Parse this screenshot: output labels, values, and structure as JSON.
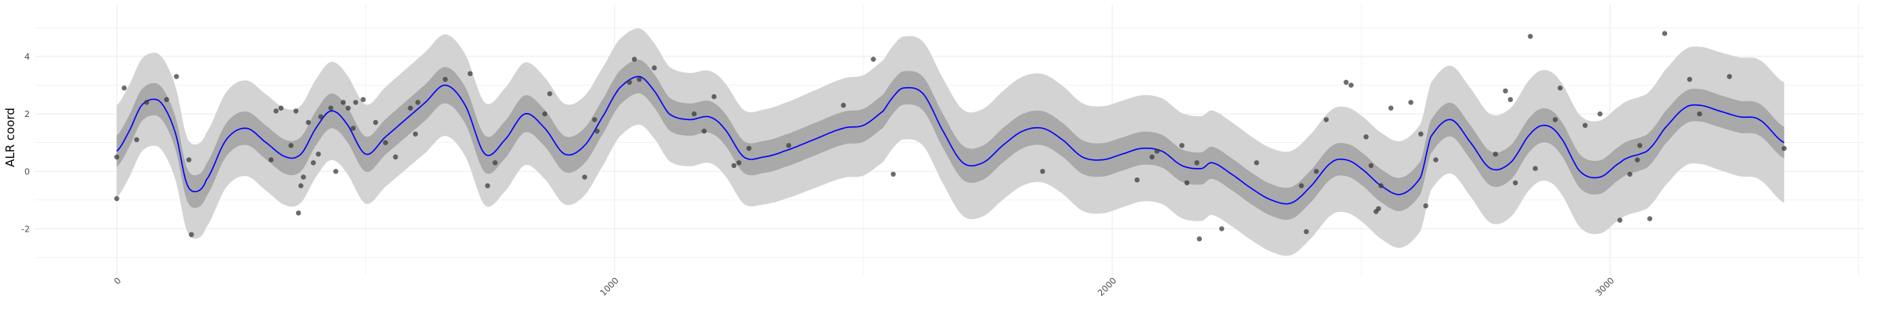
{
  "chart_data": {
    "type": "line",
    "title": "",
    "xlabel": "",
    "ylabel": "ALR coord",
    "xlim": [
      -165,
      3510
    ],
    "ylim": [
      -3.6,
      5.8
    ],
    "xticks": [
      0,
      1000,
      2000,
      3000
    ],
    "yticks": [
      -2,
      0,
      2,
      4
    ],
    "grid": true,
    "legend": "none",
    "colors": {
      "line": "#0000ff",
      "inner_band": "#a9a9a9",
      "outer_band": "#d3d3d3",
      "points": "#3b3b3b",
      "grid": "#ebebeb"
    },
    "series": [
      {
        "kind": "mean",
        "x": [
          0,
          25,
          50,
          80,
          100,
          120,
          140,
          160,
          180,
          220,
          260,
          300,
          340,
          370,
          400,
          430,
          460,
          500,
          540,
          580,
          620,
          660,
          700,
          740,
          780,
          820,
          860,
          900,
          940,
          980,
          1010,
          1050,
          1080,
          1110,
          1150,
          1190,
          1220,
          1260,
          1300,
          1340,
          1400,
          1460,
          1500,
          1540,
          1560,
          1580,
          1620,
          1660,
          1700,
          1740,
          1780,
          1820,
          1860,
          1900,
          1940,
          1980,
          2020,
          2060,
          2100,
          2140,
          2180,
          2200,
          2240,
          2280,
          2320,
          2360,
          2400,
          2440,
          2470,
          2500,
          2540,
          2580,
          2620,
          2640,
          2680,
          2720,
          2760,
          2800,
          2840,
          2870,
          2900,
          2940,
          2980,
          3020,
          3040,
          3060,
          3080,
          3110,
          3150,
          3180,
          3220,
          3260,
          3300,
          3350
        ],
        "y": [
          0.7,
          1.4,
          2.3,
          2.5,
          2.1,
          1.2,
          -0.4,
          -0.7,
          -0.3,
          1.1,
          1.5,
          1.0,
          0.5,
          0.6,
          1.5,
          2.1,
          1.7,
          0.6,
          1.2,
          1.8,
          2.4,
          3.0,
          2.3,
          0.6,
          1.1,
          2.0,
          1.5,
          0.6,
          0.9,
          2.0,
          2.9,
          3.3,
          2.8,
          2.0,
          1.8,
          1.9,
          1.5,
          0.5,
          0.5,
          0.7,
          1.1,
          1.5,
          1.6,
          2.1,
          2.6,
          2.9,
          2.7,
          1.4,
          0.3,
          0.3,
          0.9,
          1.4,
          1.5,
          1.1,
          0.5,
          0.4,
          0.6,
          0.8,
          0.7,
          0.2,
          0.1,
          0.3,
          -0.1,
          -0.6,
          -1.0,
          -1.1,
          -0.5,
          0.3,
          0.4,
          0.1,
          -0.5,
          -0.8,
          -0.2,
          1.2,
          1.8,
          1.0,
          0.1,
          0.3,
          1.3,
          1.6,
          1.2,
          0.0,
          -0.2,
          0.3,
          0.5,
          0.6,
          0.8,
          1.5,
          2.2,
          2.3,
          2.1,
          1.9,
          1.8,
          1.0
        ]
      }
    ],
    "bands": [
      {
        "kind": "inner",
        "halfwidth_x": [
          0,
          800,
          1200,
          1800,
          2300,
          2800,
          3350
        ],
        "halfwidth": [
          0.55,
          0.65,
          0.55,
          0.6,
          0.55,
          0.6,
          0.55
        ]
      },
      {
        "kind": "outer",
        "halfwidth_x": [
          0,
          800,
          1200,
          1800,
          2300,
          2800,
          3350
        ],
        "halfwidth": [
          1.6,
          1.8,
          1.6,
          1.9,
          1.8,
          1.9,
          2.1
        ]
      }
    ],
    "points": [
      {
        "x": 0,
        "y": 0.5
      },
      {
        "x": 0,
        "y": -0.95
      },
      {
        "x": 15,
        "y": 2.9
      },
      {
        "x": 40,
        "y": 1.1
      },
      {
        "x": 60,
        "y": 2.4
      },
      {
        "x": 100,
        "y": 2.5
      },
      {
        "x": 120,
        "y": 3.3
      },
      {
        "x": 145,
        "y": 0.4
      },
      {
        "x": 150,
        "y": -2.2
      },
      {
        "x": 310,
        "y": 0.4
      },
      {
        "x": 320,
        "y": 2.1
      },
      {
        "x": 330,
        "y": 2.2
      },
      {
        "x": 350,
        "y": 0.9
      },
      {
        "x": 360,
        "y": 2.1
      },
      {
        "x": 365,
        "y": -1.45
      },
      {
        "x": 370,
        "y": -0.5
      },
      {
        "x": 375,
        "y": -0.2
      },
      {
        "x": 385,
        "y": 1.7
      },
      {
        "x": 395,
        "y": 0.3
      },
      {
        "x": 405,
        "y": 0.6
      },
      {
        "x": 410,
        "y": 1.9
      },
      {
        "x": 430,
        "y": 2.2
      },
      {
        "x": 440,
        "y": 0.0
      },
      {
        "x": 455,
        "y": 2.4
      },
      {
        "x": 465,
        "y": 2.2
      },
      {
        "x": 475,
        "y": 1.5
      },
      {
        "x": 480,
        "y": 2.4
      },
      {
        "x": 495,
        "y": 2.5
      },
      {
        "x": 520,
        "y": 1.7
      },
      {
        "x": 540,
        "y": 1.0
      },
      {
        "x": 560,
        "y": 0.5
      },
      {
        "x": 590,
        "y": 2.2
      },
      {
        "x": 600,
        "y": 1.3
      },
      {
        "x": 605,
        "y": 2.4
      },
      {
        "x": 660,
        "y": 3.2
      },
      {
        "x": 710,
        "y": 3.4
      },
      {
        "x": 745,
        "y": -0.5
      },
      {
        "x": 760,
        "y": 0.3
      },
      {
        "x": 860,
        "y": 2.0
      },
      {
        "x": 870,
        "y": 2.7
      },
      {
        "x": 940,
        "y": -0.2
      },
      {
        "x": 960,
        "y": 1.8
      },
      {
        "x": 965,
        "y": 1.4
      },
      {
        "x": 1030,
        "y": 3.1
      },
      {
        "x": 1040,
        "y": 3.9
      },
      {
        "x": 1050,
        "y": 3.2
      },
      {
        "x": 1080,
        "y": 3.6
      },
      {
        "x": 1160,
        "y": 2.0
      },
      {
        "x": 1180,
        "y": 1.4
      },
      {
        "x": 1200,
        "y": 2.6
      },
      {
        "x": 1240,
        "y": 0.2
      },
      {
        "x": 1250,
        "y": 0.3
      },
      {
        "x": 1270,
        "y": 0.8
      },
      {
        "x": 1350,
        "y": 0.9
      },
      {
        "x": 1460,
        "y": 2.3
      },
      {
        "x": 1520,
        "y": 3.9
      },
      {
        "x": 1560,
        "y": -0.1
      },
      {
        "x": 1860,
        "y": 0.0
      },
      {
        "x": 2050,
        "y": -0.3
      },
      {
        "x": 2080,
        "y": 0.5
      },
      {
        "x": 2090,
        "y": 0.7
      },
      {
        "x": 2140,
        "y": 0.9
      },
      {
        "x": 2150,
        "y": -0.4
      },
      {
        "x": 2170,
        "y": 0.3
      },
      {
        "x": 2175,
        "y": -2.35
      },
      {
        "x": 2220,
        "y": -2.0
      },
      {
        "x": 2290,
        "y": 0.3
      },
      {
        "x": 2380,
        "y": -0.5
      },
      {
        "x": 2390,
        "y": -2.1
      },
      {
        "x": 2410,
        "y": 0.0
      },
      {
        "x": 2430,
        "y": 1.8
      },
      {
        "x": 2470,
        "y": 3.1
      },
      {
        "x": 2480,
        "y": 3.0
      },
      {
        "x": 2510,
        "y": 1.2
      },
      {
        "x": 2520,
        "y": 0.2
      },
      {
        "x": 2530,
        "y": -1.4
      },
      {
        "x": 2535,
        "y": -1.3
      },
      {
        "x": 2540,
        "y": -0.5
      },
      {
        "x": 2560,
        "y": 2.2
      },
      {
        "x": 2600,
        "y": 2.4
      },
      {
        "x": 2620,
        "y": 1.3
      },
      {
        "x": 2630,
        "y": -1.2
      },
      {
        "x": 2650,
        "y": 0.4
      },
      {
        "x": 2770,
        "y": 0.6
      },
      {
        "x": 2790,
        "y": 2.8
      },
      {
        "x": 2800,
        "y": 2.5
      },
      {
        "x": 2810,
        "y": -0.4
      },
      {
        "x": 2840,
        "y": 4.7
      },
      {
        "x": 2850,
        "y": 0.1
      },
      {
        "x": 2890,
        "y": 1.8
      },
      {
        "x": 2900,
        "y": 2.9
      },
      {
        "x": 2950,
        "y": 1.6
      },
      {
        "x": 2980,
        "y": 2.0
      },
      {
        "x": 3020,
        "y": -1.7
      },
      {
        "x": 3040,
        "y": -0.1
      },
      {
        "x": 3055,
        "y": 0.4
      },
      {
        "x": 3060,
        "y": 0.9
      },
      {
        "x": 3080,
        "y": -1.65
      },
      {
        "x": 3110,
        "y": 4.8
      },
      {
        "x": 3160,
        "y": 3.2
      },
      {
        "x": 3180,
        "y": 2.0
      },
      {
        "x": 3240,
        "y": 3.3
      },
      {
        "x": 3350,
        "y": 0.8
      }
    ]
  }
}
